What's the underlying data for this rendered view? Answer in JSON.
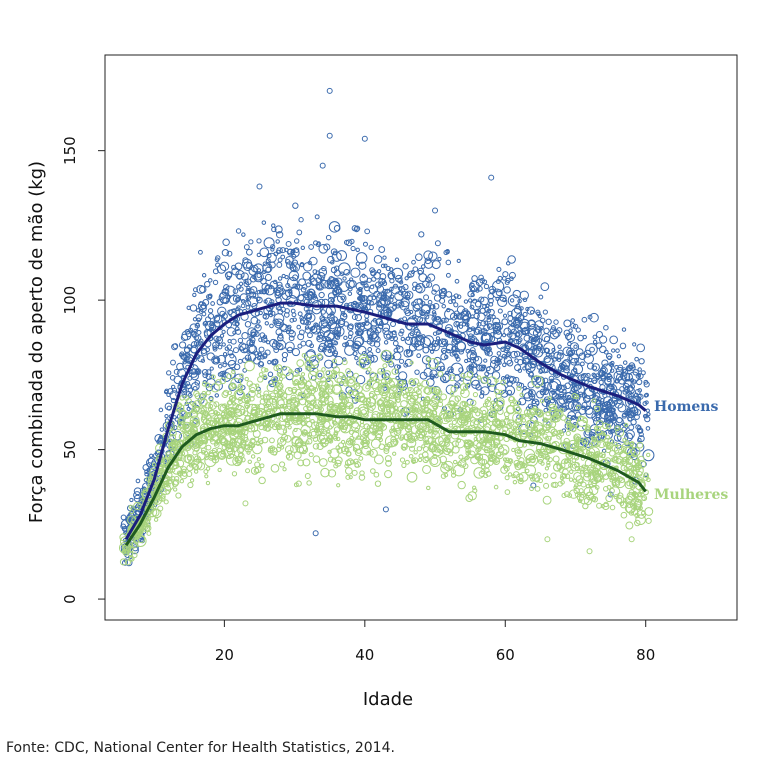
{
  "chart_data": {
    "type": "scatter",
    "title": "",
    "xlabel": "Idade",
    "ylabel": "Força combinada do aperto de mão (kg)",
    "xlim": [
      3,
      93
    ],
    "ylim": [
      -7,
      182
    ],
    "xticks": [
      20,
      40,
      60,
      80
    ],
    "yticks": [
      0,
      50,
      100,
      150
    ],
    "grid": false,
    "series": [
      {
        "name": "Homens",
        "color": "#3a6aad",
        "smooth_color": "#1b1f7e",
        "smooth": [
          [
            6,
            20
          ],
          [
            8,
            28
          ],
          [
            10,
            40
          ],
          [
            12,
            57
          ],
          [
            14,
            72
          ],
          [
            16,
            82
          ],
          [
            18,
            88
          ],
          [
            20,
            92
          ],
          [
            22,
            95
          ],
          [
            25,
            97
          ],
          [
            28,
            99
          ],
          [
            30,
            99
          ],
          [
            33,
            98
          ],
          [
            36,
            98
          ],
          [
            38,
            97
          ],
          [
            40,
            96
          ],
          [
            43,
            94
          ],
          [
            46,
            92
          ],
          [
            49,
            92
          ],
          [
            52,
            89
          ],
          [
            55,
            86
          ],
          [
            57,
            85
          ],
          [
            60,
            86
          ],
          [
            62,
            84
          ],
          [
            65,
            79
          ],
          [
            68,
            75
          ],
          [
            72,
            71
          ],
          [
            76,
            68
          ],
          [
            79,
            65
          ],
          [
            80,
            63
          ]
        ],
        "scatter_envelope": [
          [
            6,
            12,
            35
          ],
          [
            8,
            15,
            45
          ],
          [
            10,
            22,
            58
          ],
          [
            12,
            30,
            80
          ],
          [
            14,
            40,
            100
          ],
          [
            16,
            45,
            112
          ],
          [
            18,
            50,
            120
          ],
          [
            20,
            55,
            127
          ],
          [
            25,
            58,
            135
          ],
          [
            30,
            60,
            135
          ],
          [
            35,
            58,
            132
          ],
          [
            40,
            56,
            130
          ],
          [
            45,
            55,
            125
          ],
          [
            50,
            52,
            120
          ],
          [
            55,
            50,
            118
          ],
          [
            60,
            48,
            115
          ],
          [
            65,
            45,
            108
          ],
          [
            70,
            40,
            100
          ],
          [
            75,
            38,
            95
          ],
          [
            80,
            33,
            92
          ]
        ],
        "outliers": [
          [
            35,
            170
          ],
          [
            35,
            155
          ],
          [
            40,
            154
          ],
          [
            34,
            145
          ],
          [
            58,
            141
          ],
          [
            25,
            138
          ],
          [
            50,
            130
          ],
          [
            33,
            22
          ],
          [
            43,
            30
          ],
          [
            64,
            38
          ],
          [
            75,
            35
          ]
        ]
      },
      {
        "name": "Mulheres",
        "color": "#a8d47d",
        "smooth_color": "#1f5b1f",
        "smooth": [
          [
            6,
            18
          ],
          [
            8,
            25
          ],
          [
            10,
            34
          ],
          [
            12,
            44
          ],
          [
            14,
            51
          ],
          [
            16,
            55
          ],
          [
            18,
            57
          ],
          [
            20,
            58
          ],
          [
            22,
            58
          ],
          [
            25,
            60
          ],
          [
            28,
            62
          ],
          [
            30,
            62
          ],
          [
            33,
            62
          ],
          [
            36,
            61
          ],
          [
            38,
            61
          ],
          [
            40,
            60
          ],
          [
            43,
            60
          ],
          [
            46,
            60
          ],
          [
            49,
            60
          ],
          [
            52,
            56
          ],
          [
            55,
            56
          ],
          [
            57,
            56
          ],
          [
            60,
            55
          ],
          [
            62,
            53
          ],
          [
            65,
            52
          ],
          [
            68,
            50
          ],
          [
            72,
            47
          ],
          [
            76,
            43
          ],
          [
            79,
            39
          ],
          [
            80,
            36
          ]
        ],
        "scatter_envelope": [
          [
            6,
            12,
            30
          ],
          [
            8,
            15,
            40
          ],
          [
            10,
            20,
            52
          ],
          [
            12,
            25,
            65
          ],
          [
            14,
            30,
            72
          ],
          [
            16,
            33,
            78
          ],
          [
            18,
            35,
            82
          ],
          [
            20,
            37,
            85
          ],
          [
            25,
            38,
            88
          ],
          [
            30,
            38,
            88
          ],
          [
            35,
            37,
            88
          ],
          [
            40,
            36,
            88
          ],
          [
            45,
            35,
            86
          ],
          [
            50,
            33,
            82
          ],
          [
            55,
            30,
            80
          ],
          [
            60,
            28,
            78
          ],
          [
            65,
            25,
            74
          ],
          [
            70,
            22,
            70
          ],
          [
            75,
            20,
            65
          ],
          [
            80,
            17,
            60
          ]
        ],
        "outliers": [
          [
            23,
            32
          ],
          [
            72,
            16
          ],
          [
            66,
            20
          ],
          [
            78,
            20
          ]
        ]
      }
    ]
  },
  "source": "Fonte: CDC, National Center for Health Statistics, 2014."
}
